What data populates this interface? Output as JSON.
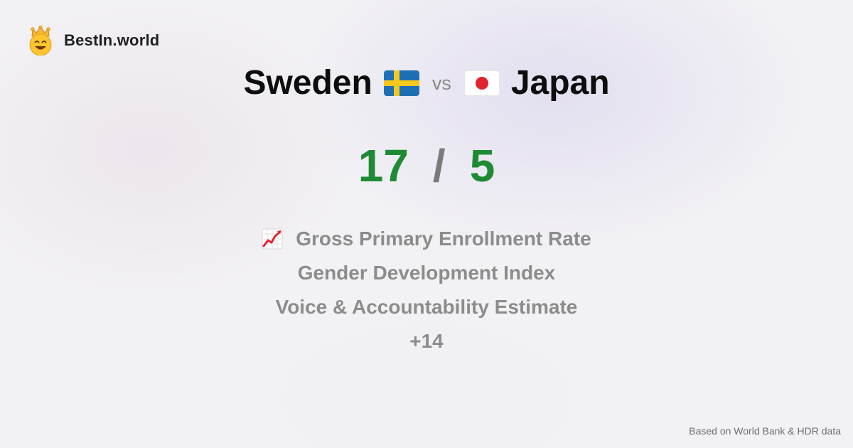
{
  "brand": {
    "name": "BestIn.world",
    "logo_icon": "crown-smiley-icon"
  },
  "comparison": {
    "left_country": "Sweden",
    "left_flag": "sweden-flag-icon",
    "vs_label": "vs",
    "right_country": "Japan",
    "right_flag": "japan-flag-icon"
  },
  "score": {
    "left": "17",
    "separator": "/",
    "right": "5"
  },
  "metrics": {
    "icon": "chart-increasing-icon",
    "items": [
      "Gross Primary Enrollment Rate",
      "Gender Development Index",
      "Voice & Accountability Estimate"
    ],
    "more": "+14"
  },
  "footer": {
    "source": "Based on World Bank & HDR data"
  },
  "colors": {
    "score_green": "#1e8b34",
    "muted_text": "#8c8c8c",
    "sweden_blue": "#1f6fb5",
    "sweden_yellow": "#f6c71c",
    "japan_red": "#e0242f"
  }
}
